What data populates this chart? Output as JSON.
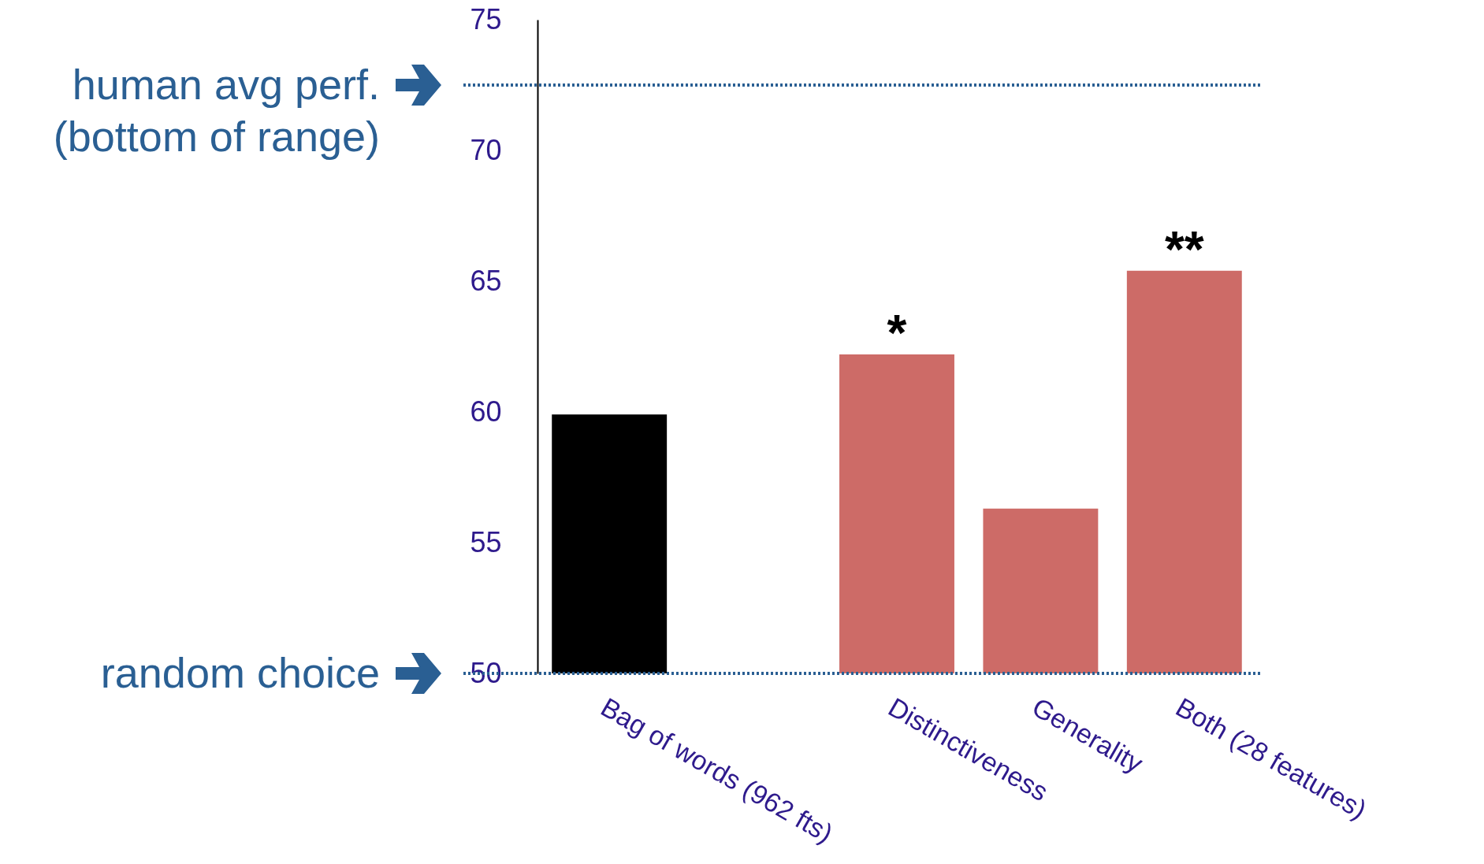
{
  "chart_data": {
    "type": "bar",
    "categories": [
      "Bag of words (962 fts)",
      null,
      "Distinctiveness",
      "Generality",
      "Both (28 features)"
    ],
    "values": [
      59.9,
      null,
      62.2,
      56.3,
      65.4
    ],
    "colors": [
      "#000000",
      null,
      "#cd6b67",
      "#cd6b67",
      "#cd6b67"
    ],
    "ylim": [
      50,
      75
    ],
    "yticks": [
      50,
      55,
      60,
      65,
      70,
      75
    ],
    "grid": false,
    "ref_lines": [
      {
        "axis": "y",
        "value": 72.5,
        "label": "human avg perf.\n(bottom of range)",
        "color": "#2a5f93",
        "line_style": "dotted"
      },
      {
        "axis": "y",
        "value": 50,
        "label": "random choice",
        "color": "#2a5f93",
        "line_style": "dotted"
      }
    ],
    "annotations": [
      {
        "text": "*",
        "x": "Distinctiveness",
        "y": 62.2
      },
      {
        "text": "**",
        "x": "Both (28 features)",
        "y": 65.4
      }
    ]
  }
}
